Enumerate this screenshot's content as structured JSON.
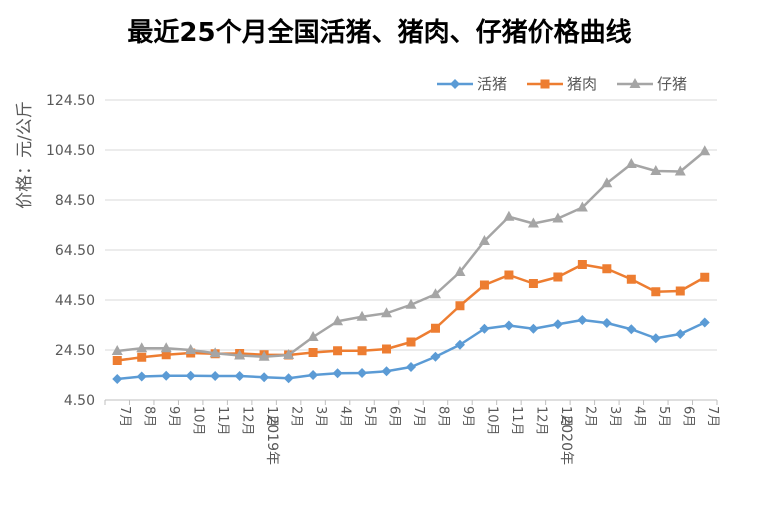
{
  "chart_data": {
    "type": "line",
    "title": "最近25个月全国活猪、猪肉、仔猪价格曲线",
    "ylabel": "价格：元/公斤",
    "xlabel": "",
    "ylim": [
      4.5,
      124.5
    ],
    "yticks": [
      "4.50",
      "24.50",
      "44.50",
      "64.50",
      "84.50",
      "104.50",
      "124.50"
    ],
    "ytick_values": [
      4.5,
      24.5,
      44.5,
      64.5,
      84.5,
      104.5,
      124.5
    ],
    "categories": [
      "7月",
      "8月",
      "9月",
      "10月",
      "11月",
      "12月",
      "1月",
      "2月",
      "3月",
      "4月",
      "5月",
      "6月",
      "7月",
      "8月",
      "9月",
      "10月",
      "11月",
      "12月",
      "1月",
      "2月",
      "3月",
      "4月",
      "5月",
      "6月",
      "7月"
    ],
    "year_markers": [
      {
        "index": 6,
        "label": "2019年"
      },
      {
        "index": 18,
        "label": "2020年"
      }
    ],
    "grid": true,
    "legend_position": "top-right",
    "series": [
      {
        "name": "活猪",
        "color": "#5B9BD5",
        "marker": "diamond",
        "values": [
          12.9,
          13.9,
          14.2,
          14.2,
          14.1,
          14.1,
          13.6,
          13.2,
          14.5,
          15.2,
          15.3,
          16.0,
          17.7,
          21.8,
          26.6,
          33.0,
          34.3,
          33.0,
          34.8,
          36.5,
          35.3,
          32.8,
          29.2,
          30.9,
          35.5
        ]
      },
      {
        "name": "猪肉",
        "color": "#ED7D31",
        "marker": "square",
        "values": [
          20.3,
          21.6,
          22.6,
          23.3,
          23.0,
          23.1,
          22.6,
          22.5,
          23.5,
          24.2,
          24.2,
          24.9,
          27.7,
          33.2,
          42.2,
          50.5,
          54.5,
          51.1,
          53.7,
          58.7,
          57.0,
          52.8,
          47.8,
          48.1,
          53.6
        ]
      },
      {
        "name": "仔猪",
        "color": "#A5A5A5",
        "marker": "triangle",
        "values": [
          24.1,
          25.2,
          25.2,
          24.5,
          23.2,
          22.3,
          21.8,
          22.5,
          29.7,
          36.0,
          37.8,
          39.2,
          42.6,
          46.8,
          55.7,
          68.1,
          77.8,
          75.1,
          77.1,
          81.5,
          91.2,
          98.9,
          96.1,
          95.9,
          104.0
        ]
      }
    ]
  }
}
